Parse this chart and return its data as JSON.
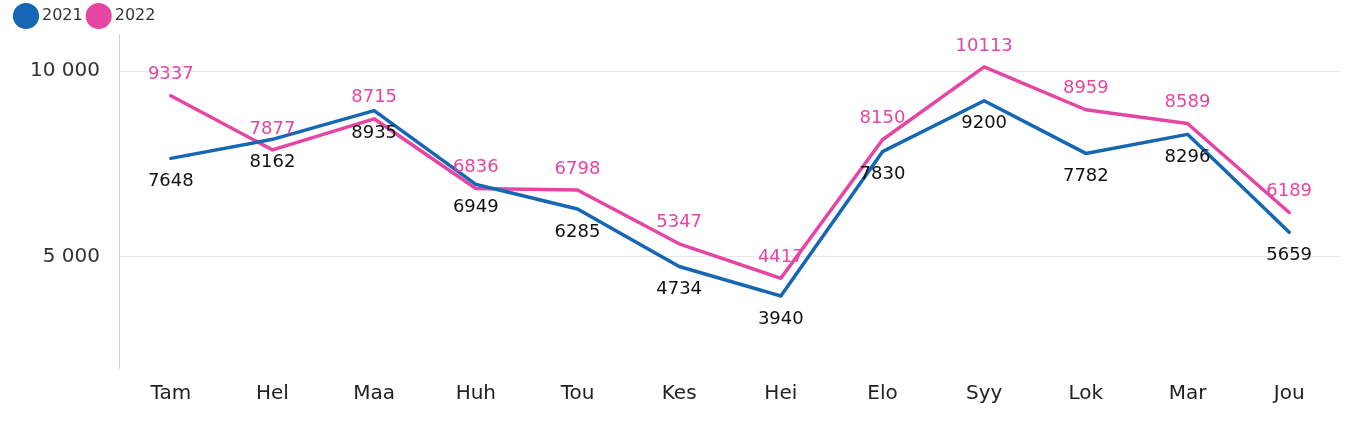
{
  "chart_data": {
    "type": "line",
    "categories": [
      "Tam",
      "Hel",
      "Maa",
      "Huh",
      "Tou",
      "Kes",
      "Hei",
      "Elo",
      "Syy",
      "Lok",
      "Mar",
      "Jou"
    ],
    "series": [
      {
        "name": "2021",
        "color": "#1567b4",
        "values": [
          7648,
          8162,
          8935,
          6949,
          6285,
          4734,
          3940,
          7830,
          9200,
          7782,
          8296,
          5659
        ]
      },
      {
        "name": "2022",
        "color": "#e645a4",
        "values": [
          9337,
          7877,
          8715,
          6836,
          6798,
          5347,
          4417,
          8150,
          10113,
          8959,
          8589,
          6189
        ]
      }
    ],
    "ylim": [
      2000,
      11000
    ],
    "yticks": [
      {
        "value": 5000,
        "label": "5 000"
      },
      {
        "value": 10000,
        "label": "10 000"
      }
    ],
    "grid": "y",
    "legend": "top left",
    "marker": "none",
    "line_style": "solid",
    "data_labels": true
  }
}
